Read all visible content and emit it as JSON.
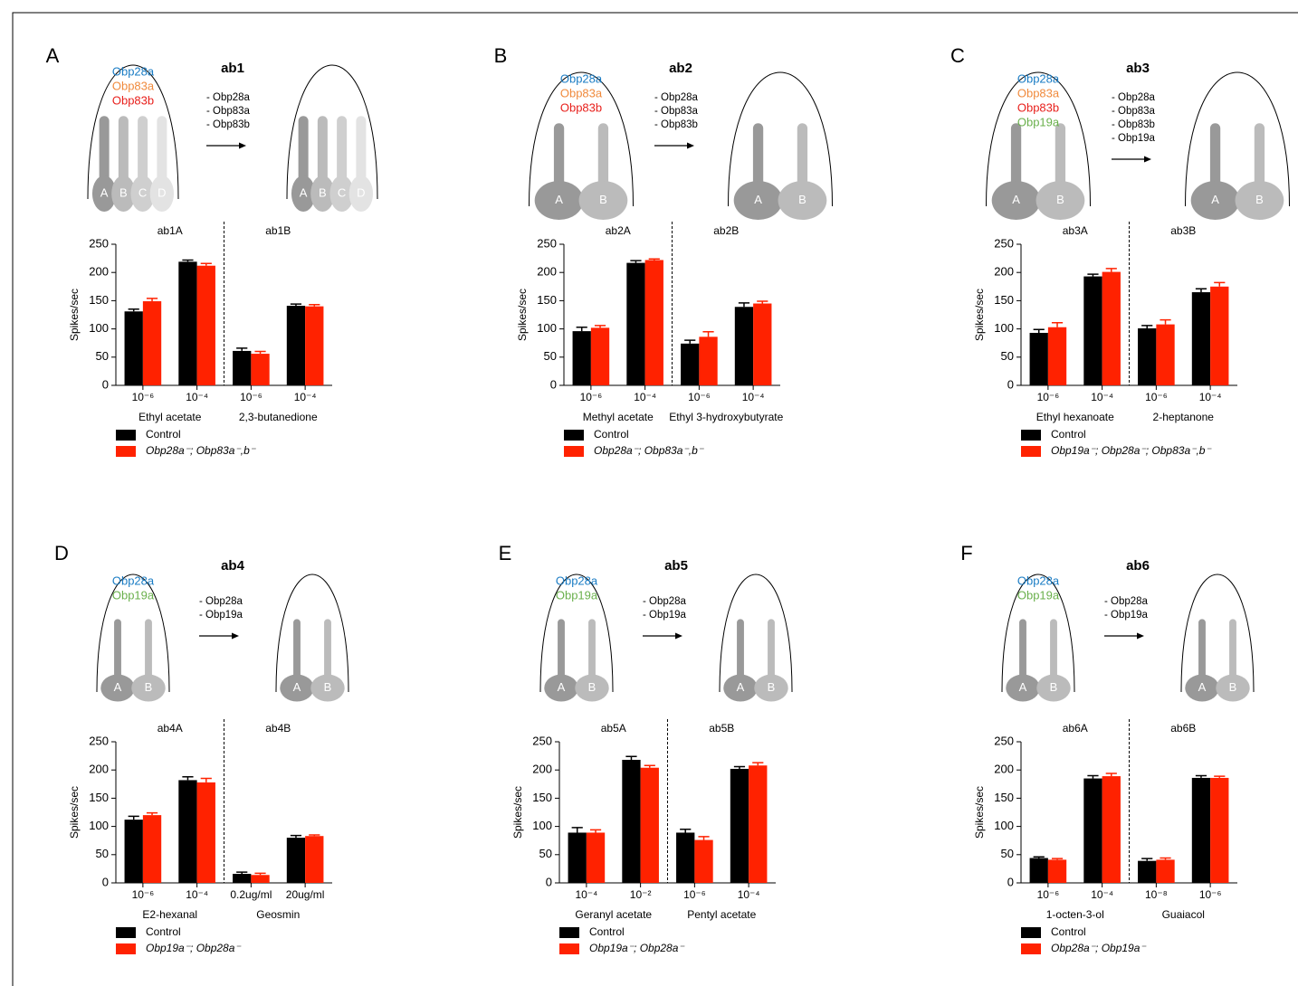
{
  "chart_data": [
    {
      "type": "bar",
      "panel": "A",
      "title": "ab1",
      "obps": [
        {
          "text": "Obp28a",
          "color": "#1a7cc4"
        },
        {
          "text": "Obp83a",
          "color": "#f08a3c"
        },
        {
          "text": "Obp83b",
          "color": "#e8201c"
        }
      ],
      "deletions": [
        "- Obp28a",
        "- Obp83a",
        "- Obp83b"
      ],
      "neurons": [
        "A",
        "B",
        "C",
        "D"
      ],
      "groups": [
        {
          "name": "ab1A",
          "odorant": "Ethyl acetate"
        },
        {
          "name": "ab1B",
          "odorant": "2,3-butanedione"
        }
      ],
      "categories": [
        "10⁻⁶",
        "10⁻⁴",
        "10⁻⁶",
        "10⁻⁴"
      ],
      "ylabel": "Spikes/sec",
      "ylim": [
        0,
        250
      ],
      "yticks": [
        0,
        50,
        100,
        150,
        200,
        250
      ],
      "series": [
        {
          "name": "Control",
          "color": "#000000",
          "values": [
            131,
            219,
            61,
            141
          ],
          "errors": [
            4,
            3,
            5,
            3
          ]
        },
        {
          "name": "Obp28a⁻; Obp83a⁻,b⁻",
          "color": "#ff2200",
          "values": [
            149,
            212,
            56,
            140
          ],
          "errors": [
            5,
            4,
            4,
            3
          ]
        }
      ]
    },
    {
      "type": "bar",
      "panel": "B",
      "title": "ab2",
      "obps": [
        {
          "text": "Obp28a",
          "color": "#1a7cc4"
        },
        {
          "text": "Obp83a",
          "color": "#f08a3c"
        },
        {
          "text": "Obp83b",
          "color": "#e8201c"
        }
      ],
      "deletions": [
        "- Obp28a",
        "- Obp83a",
        "- Obp83b"
      ],
      "neurons": [
        "A",
        "B"
      ],
      "groups": [
        {
          "name": "ab2A",
          "odorant": "Methyl acetate"
        },
        {
          "name": "ab2B",
          "odorant": "Ethyl 3-hydroxybutyrate"
        }
      ],
      "categories": [
        "10⁻⁶",
        "10⁻⁴",
        "10⁻⁶",
        "10⁻⁴"
      ],
      "ylabel": "Spikes/sec",
      "ylim": [
        0,
        250
      ],
      "yticks": [
        0,
        50,
        100,
        150,
        200,
        250
      ],
      "series": [
        {
          "name": "Control",
          "color": "#000000",
          "values": [
            96,
            217,
            74,
            139
          ],
          "errors": [
            7,
            4,
            6,
            7
          ]
        },
        {
          "name": "Obp28a⁻; Obp83a⁻,b⁻",
          "color": "#ff2200",
          "values": [
            102,
            222,
            86,
            145
          ],
          "errors": [
            4,
            2,
            9,
            4
          ]
        }
      ]
    },
    {
      "type": "bar",
      "panel": "C",
      "title": "ab3",
      "obps": [
        {
          "text": "Obp28a",
          "color": "#1a7cc4"
        },
        {
          "text": "Obp83a",
          "color": "#f08a3c"
        },
        {
          "text": "Obp83b",
          "color": "#e8201c"
        },
        {
          "text": "Obp19a",
          "color": "#6ab04c"
        }
      ],
      "deletions": [
        "- Obp28a",
        "- Obp83a",
        "- Obp83b",
        "- Obp19a"
      ],
      "neurons": [
        "A",
        "B"
      ],
      "groups": [
        {
          "name": "ab3A",
          "odorant": "Ethyl hexanoate"
        },
        {
          "name": "ab3B",
          "odorant": "2-heptanone"
        }
      ],
      "categories": [
        "10⁻⁶",
        "10⁻⁴",
        "10⁻⁶",
        "10⁻⁴"
      ],
      "ylabel": "Spikes/sec",
      "ylim": [
        0,
        250
      ],
      "yticks": [
        0,
        50,
        100,
        150,
        200,
        250
      ],
      "series": [
        {
          "name": "Control",
          "color": "#000000",
          "values": [
            93,
            193,
            101,
            165
          ],
          "errors": [
            6,
            4,
            5,
            6
          ]
        },
        {
          "name": "Obp19a⁻; Obp28a⁻; Obp83a⁻,b⁻",
          "color": "#ff2200",
          "values": [
            103,
            201,
            108,
            175
          ],
          "errors": [
            8,
            6,
            8,
            7
          ]
        }
      ]
    },
    {
      "type": "bar",
      "panel": "D",
      "title": "ab4",
      "obps": [
        {
          "text": "Obp28a",
          "color": "#1a7cc4"
        },
        {
          "text": "Obp19a",
          "color": "#6ab04c"
        }
      ],
      "deletions": [
        "- Obp28a",
        "- Obp19a"
      ],
      "neurons": [
        "A",
        "B"
      ],
      "groups": [
        {
          "name": "ab4A",
          "odorant": "E2-hexanal"
        },
        {
          "name": "ab4B",
          "odorant": "Geosmin"
        }
      ],
      "categories": [
        "10⁻⁶",
        "10⁻⁴",
        "0.2ug/ml",
        "20ug/ml"
      ],
      "ylabel": "Spikes/sec",
      "ylim": [
        0,
        250
      ],
      "yticks": [
        0,
        50,
        100,
        150,
        200,
        250
      ],
      "series": [
        {
          "name": "Control",
          "color": "#000000",
          "values": [
            112,
            182,
            16,
            80
          ],
          "errors": [
            6,
            6,
            3,
            4
          ]
        },
        {
          "name": "Obp19a⁻; Obp28a⁻",
          "color": "#ff2200",
          "values": [
            120,
            178,
            14,
            83
          ],
          "errors": [
            4,
            7,
            3,
            2
          ]
        }
      ]
    },
    {
      "type": "bar",
      "panel": "E",
      "title": "ab5",
      "obps": [
        {
          "text": "Obp28a",
          "color": "#1a7cc4"
        },
        {
          "text": "Obp19a",
          "color": "#6ab04c"
        }
      ],
      "deletions": [
        "- Obp28a",
        "- Obp19a"
      ],
      "neurons": [
        "A",
        "B"
      ],
      "groups": [
        {
          "name": "ab5A",
          "odorant": "Geranyl acetate"
        },
        {
          "name": "ab5B",
          "odorant": "Pentyl acetate"
        }
      ],
      "categories": [
        "10⁻⁴",
        "10⁻²",
        "10⁻⁶",
        "10⁻⁴"
      ],
      "ylabel": "Spikes/sec",
      "ylim": [
        0,
        250
      ],
      "yticks": [
        0,
        50,
        100,
        150,
        200,
        250
      ],
      "series": [
        {
          "name": "Control",
          "color": "#000000",
          "values": [
            89,
            218,
            89,
            202
          ],
          "errors": [
            9,
            6,
            6,
            4
          ]
        },
        {
          "name": "Obp19a⁻; Obp28a⁻",
          "color": "#ff2200",
          "values": [
            89,
            204,
            76,
            208
          ],
          "errors": [
            5,
            4,
            6,
            5
          ]
        }
      ]
    },
    {
      "type": "bar",
      "panel": "F",
      "title": "ab6",
      "obps": [
        {
          "text": "Obp28a",
          "color": "#1a7cc4"
        },
        {
          "text": "Obp19a",
          "color": "#6ab04c"
        }
      ],
      "deletions": [
        "- Obp28a",
        "- Obp19a"
      ],
      "neurons": [
        "A",
        "B"
      ],
      "groups": [
        {
          "name": "ab6A",
          "odorant": "1-octen-3-ol"
        },
        {
          "name": "ab6B",
          "odorant": "Guaiacol"
        }
      ],
      "categories": [
        "10⁻⁶",
        "10⁻⁴",
        "10⁻⁸",
        "10⁻⁶"
      ],
      "ylabel": "Spikes/sec",
      "ylim": [
        0,
        250
      ],
      "yticks": [
        0,
        50,
        100,
        150,
        200,
        250
      ],
      "series": [
        {
          "name": "Control",
          "color": "#000000",
          "values": [
            44,
            185,
            39,
            186
          ],
          "errors": [
            2,
            5,
            4,
            4
          ]
        },
        {
          "name": "Obp28a⁻; Obp19a⁻",
          "color": "#ff2200",
          "values": [
            41,
            189,
            41,
            186
          ],
          "errors": [
            2,
            5,
            3,
            3
          ]
        }
      ]
    }
  ]
}
